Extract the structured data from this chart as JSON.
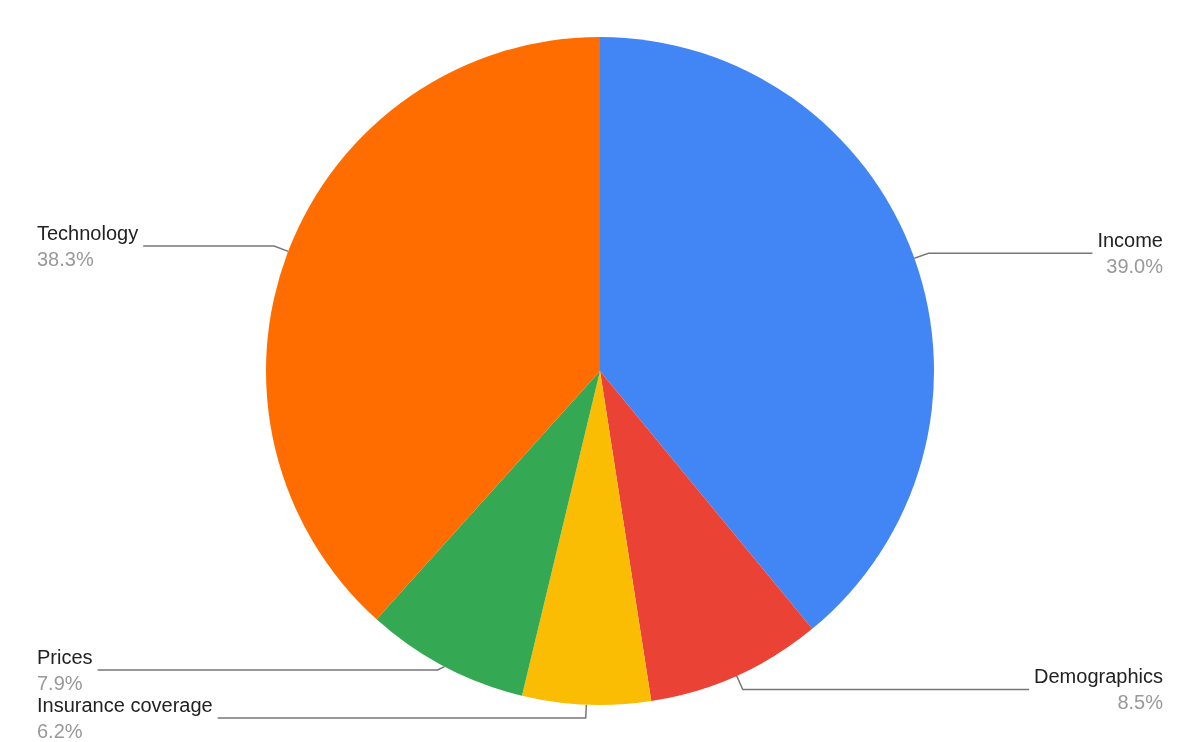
{
  "chart_data": {
    "type": "pie",
    "categories": [
      "Income",
      "Demographics",
      "Insurance coverage",
      "Prices",
      "Technology"
    ],
    "values": [
      39.0,
      8.5,
      6.2,
      7.9,
      38.3
    ],
    "colors": [
      "#4285f4",
      "#ea4335",
      "#fbbc04",
      "#34a853",
      "#ff6d01"
    ],
    "value_labels": [
      "39.0%",
      "8.5%",
      "6.2%",
      "7.9%",
      "38.3%"
    ],
    "legend": false
  }
}
